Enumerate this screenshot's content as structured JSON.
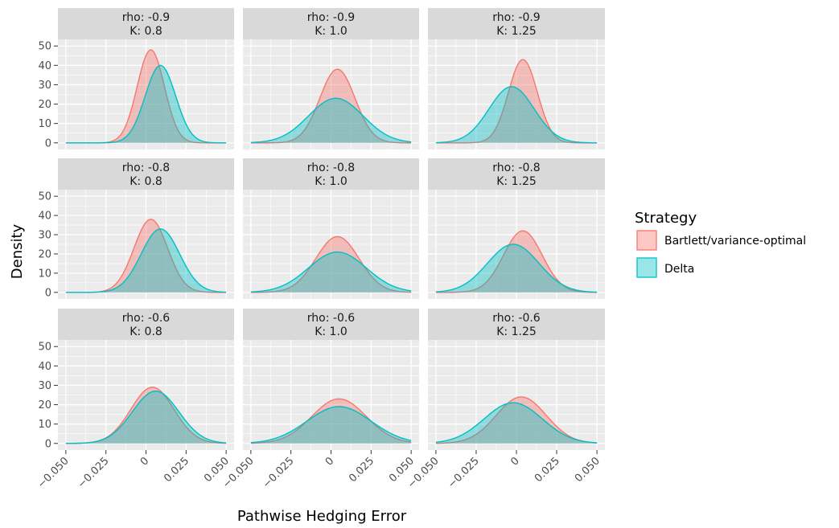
{
  "chart_data": {
    "type": "area",
    "chart_kind": "density facet grid",
    "xlabel": "Pathwise Hedging Error",
    "ylabel": "Density",
    "xlim": [
      -0.05,
      0.05
    ],
    "ylim": [
      0,
      50
    ],
    "x_ticks": [
      -0.05,
      -0.025,
      0,
      0.025,
      0.05
    ],
    "x_tick_labels": [
      "−0.050",
      "−0.025",
      "0",
      "0.025",
      "0.050"
    ],
    "y_ticks": [
      0,
      10,
      20,
      30,
      40,
      50
    ],
    "y_tick_labels": [
      "0",
      "10",
      "20",
      "30",
      "40",
      "50"
    ],
    "grid": true,
    "legend": {
      "title": "Strategy",
      "position": "right",
      "entries": [
        {
          "label": "Bartlett/variance-optimal",
          "color": "#F8766D"
        },
        {
          "label": "Delta",
          "color": "#00BFC4"
        }
      ]
    },
    "facets": [
      {
        "rho": "rho: -0.9",
        "k": "K: 0.8",
        "series": [
          {
            "name": "Bartlett/variance-optimal",
            "peak": 48,
            "center": 0.003,
            "sd": 0.0085
          },
          {
            "name": "Delta",
            "peak": 40,
            "center": 0.009,
            "sd": 0.0095
          }
        ]
      },
      {
        "rho": "rho: -0.9",
        "k": "K: 1.0",
        "series": [
          {
            "name": "Bartlett/variance-optimal",
            "peak": 38,
            "center": 0.004,
            "sd": 0.011
          },
          {
            "name": "Delta",
            "peak": 23,
            "center": 0.003,
            "sd": 0.017
          }
        ]
      },
      {
        "rho": "rho: -0.9",
        "k": "K: 1.25",
        "series": [
          {
            "name": "Bartlett/variance-optimal",
            "peak": 43,
            "center": 0.004,
            "sd": 0.009
          },
          {
            "name": "Delta",
            "peak": 29,
            "center": -0.003,
            "sd": 0.014
          }
        ]
      },
      {
        "rho": "rho: -0.8",
        "k": "K: 0.8",
        "series": [
          {
            "name": "Bartlett/variance-optimal",
            "peak": 38,
            "center": 0.003,
            "sd": 0.0105
          },
          {
            "name": "Delta",
            "peak": 33,
            "center": 0.009,
            "sd": 0.012
          }
        ]
      },
      {
        "rho": "rho: -0.8",
        "k": "K: 1.0",
        "series": [
          {
            "name": "Bartlett/variance-optimal",
            "peak": 29,
            "center": 0.004,
            "sd": 0.0135
          },
          {
            "name": "Delta",
            "peak": 21,
            "center": 0.004,
            "sd": 0.018
          }
        ]
      },
      {
        "rho": "rho: -0.8",
        "k": "K: 1.25",
        "series": [
          {
            "name": "Bartlett/variance-optimal",
            "peak": 32,
            "center": 0.004,
            "sd": 0.012
          },
          {
            "name": "Delta",
            "peak": 25,
            "center": -0.002,
            "sd": 0.016
          }
        ]
      },
      {
        "rho": "rho: -0.6",
        "k": "K: 0.8",
        "series": [
          {
            "name": "Bartlett/variance-optimal",
            "peak": 29,
            "center": 0.004,
            "sd": 0.0135
          },
          {
            "name": "Delta",
            "peak": 27,
            "center": 0.006,
            "sd": 0.0145
          }
        ]
      },
      {
        "rho": "rho: -0.6",
        "k": "K: 1.0",
        "series": [
          {
            "name": "Bartlett/variance-optimal",
            "peak": 23,
            "center": 0.005,
            "sd": 0.017
          },
          {
            "name": "Delta",
            "peak": 19,
            "center": 0.005,
            "sd": 0.02
          }
        ]
      },
      {
        "rho": "rho: -0.6",
        "k": "K: 1.25",
        "series": [
          {
            "name": "Bartlett/variance-optimal",
            "peak": 24,
            "center": 0.003,
            "sd": 0.0155
          },
          {
            "name": "Delta",
            "peak": 21,
            "center": -0.002,
            "sd": 0.018
          }
        ]
      }
    ]
  }
}
